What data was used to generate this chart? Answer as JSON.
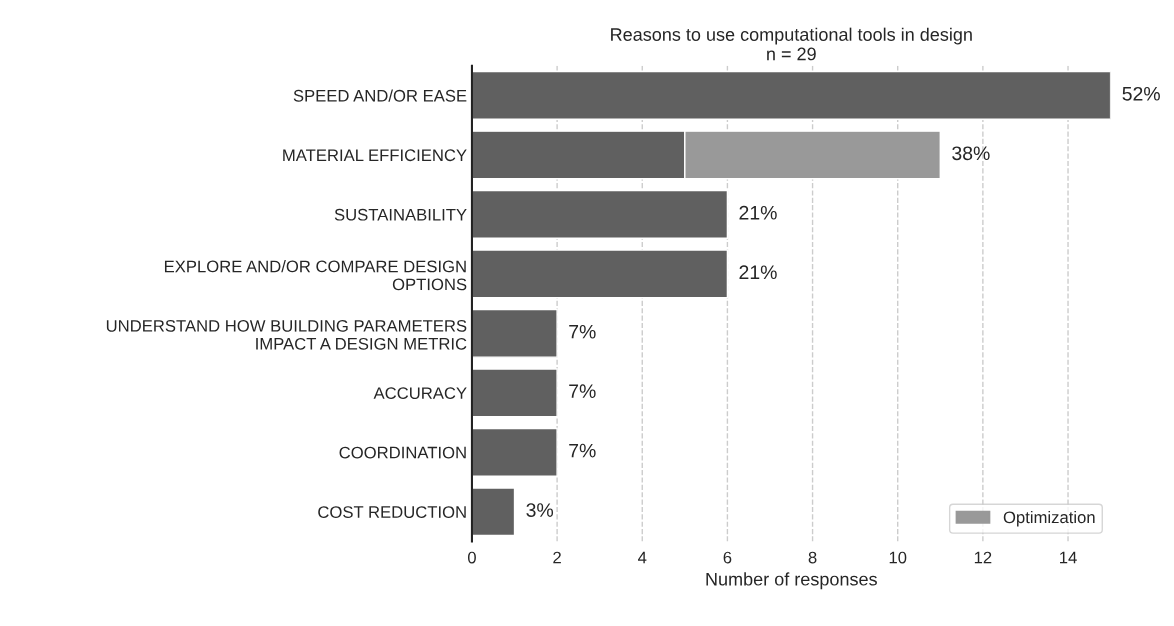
{
  "chart_data": {
    "type": "bar",
    "orientation": "horizontal",
    "stacked": true,
    "title": "Reasons to use computational tools in design",
    "subtitle": "n = 29",
    "xlabel": "Number of responses",
    "categories": [
      "SPEED AND/OR EASE",
      "MATERIAL EFFICIENCY",
      "SUSTAINABILITY",
      "EXPLORE AND/OR COMPARE DESIGN\nOPTIONS",
      "UNDERSTAND HOW BUILDING PARAMETERS\nIMPACT A DESIGN METRIC",
      "ACCURACY",
      "COORDINATION",
      "COST REDUCTION"
    ],
    "series": [
      {
        "color": "#606060",
        "values": [
          15,
          5,
          6,
          6,
          2,
          2,
          2,
          1
        ]
      },
      {
        "name": "Optimization",
        "color": "#999999",
        "values": [
          null,
          6,
          null,
          null,
          null,
          null,
          null,
          null
        ]
      }
    ],
    "annotations": [
      {
        "text": "52%",
        "x": 15,
        "y": "SPEED AND/OR EASE"
      },
      {
        "text": "38%",
        "x": 11,
        "y": "MATERIAL EFFICIENCY"
      },
      {
        "text": "21%",
        "x": 6,
        "y": "SUSTAINABILITY"
      },
      {
        "text": "21%",
        "x": 6,
        "y": "EXPLORE AND/OR COMPARE DESIGN\nOPTIONS"
      },
      {
        "text": "7%",
        "x": 2,
        "y": "UNDERSTAND HOW BUILDING PARAMETERS\nIMPACT A DESIGN METRIC"
      },
      {
        "text": "7%",
        "x": 2,
        "y": "ACCURACY"
      },
      {
        "text": "7%",
        "x": 2,
        "y": "COORDINATION"
      },
      {
        "text": "3%",
        "x": 1,
        "y": "COST REDUCTION"
      }
    ],
    "xlim": [
      0,
      15
    ],
    "xticks": [
      0,
      2,
      4,
      6,
      8,
      10,
      12,
      14
    ],
    "grid": "x",
    "legend": "bottom right"
  }
}
